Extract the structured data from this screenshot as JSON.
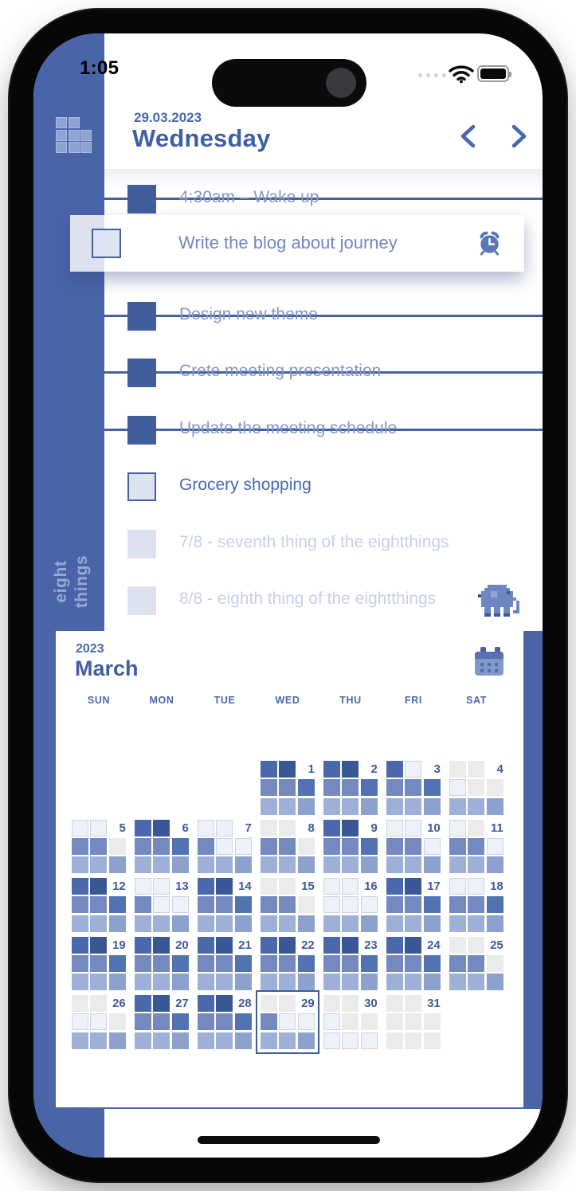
{
  "status_bar": {
    "time": "1:05"
  },
  "header": {
    "date": "29.03.2023",
    "day": "Wednesday"
  },
  "brand": {
    "line1": "eight",
    "line2": "things"
  },
  "tasks": [
    {
      "label": "4:30am – Wake up",
      "state": "done"
    },
    {
      "label": "Write the blog about journey",
      "state": "card",
      "icon": "alarm-icon"
    },
    {
      "label": "Design new theme",
      "state": "done"
    },
    {
      "label": "Crete meeting presentation",
      "state": "done"
    },
    {
      "label": "Update the meeting schedule",
      "state": "done"
    },
    {
      "label": "Grocery shopping",
      "state": "open"
    },
    {
      "label": "7/8 - seventh thing of the eightthings",
      "state": "ghost"
    },
    {
      "label": "8/8 - eighth thing of the eightthings",
      "state": "ghost",
      "icon": "elephant-icon"
    }
  ],
  "calendar": {
    "year": "2023",
    "month": "March",
    "weekdays": [
      "SUN",
      "MON",
      "TUE",
      "WED",
      "THU",
      "FRI",
      "SAT"
    ],
    "first_col": 3,
    "selected_day": 29,
    "palette": {
      "a": "#4a69ad",
      "b": "#3a5795",
      "c": "#7389bf",
      "d": "#5273b3",
      "e": "#9fb0d8",
      "f": "#8da1ce",
      "x": "#ebebeb",
      "o": "#eef1f7"
    },
    "outline_border": "#c9d3e8",
    "day_squares": [
      "abccdeef",
      "abccdeef",
      "aoccdeef",
      "xxoxxeef",
      "ooccxeef",
      "abccdeef",
      "oocooeef",
      "xxccxeef",
      "abccdeef",
      "ooccoeef",
      "oxccoeef",
      "abccdeef",
      "oocooeef",
      "abccdeef",
      "xxccxeef",
      "oooooeef",
      "abccdeef",
      "ooccdeef",
      "abccdeef",
      "abccdeef",
      "abccdeef",
      "abccdeef",
      "abccdeef",
      "abccdeef",
      "xxccxeef",
      "xxooxeef",
      "abccdeef",
      "abccdeef",
      "xxcooeef",
      "xxoxxooo",
      "xxxxxxxx"
    ]
  },
  "icons": {
    "logo_grid_rows": [
      "11.",
      "111",
      "111"
    ],
    "elephant_colors": {
      "m": "#6f87c0",
      "d": "#3c589a",
      "l": "#93a6d2"
    },
    "elephant_rows": [
      "...mmmmmm.....",
      "..mmmmmmmm....",
      ".mmmllmmmdm...",
      "dmmmllmmmmm...",
      ".mmmmmmmmmmm..",
      ".mmmmmmmmmm.m.",
      ".mmmmmmmmmm.m.",
      "..mm.mm.mm..m.",
      "..mm.mm.mm.mm.",
      "..dd.dd.dd...."
    ]
  },
  "colors": {
    "accent": "#4a64a8",
    "heading": "#3f5fa5",
    "done_line": "#44619f",
    "done_text": "#8496c7",
    "active_text": "#4a68ad",
    "ghost_text": "#c7d0e7"
  }
}
